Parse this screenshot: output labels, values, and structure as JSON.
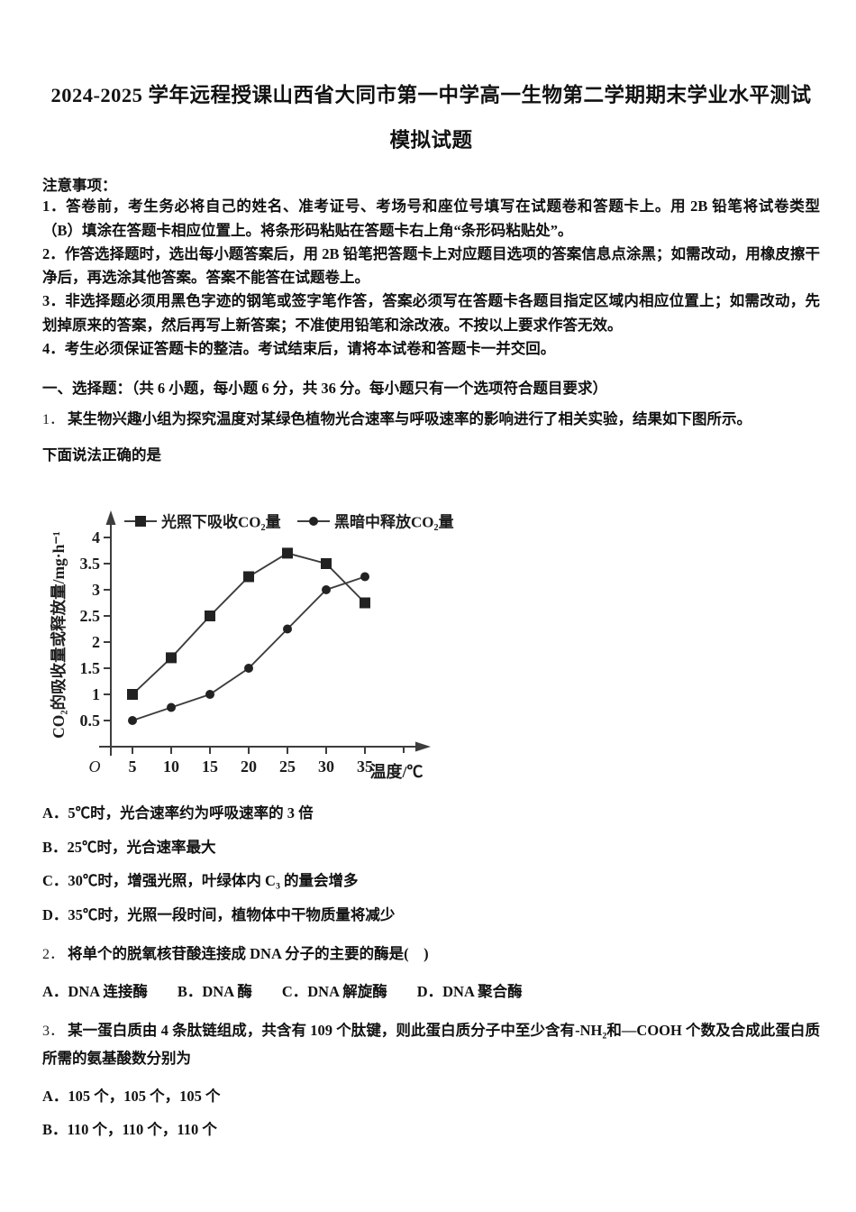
{
  "header": {
    "title_line1": "2024-2025 学年远程授课山西省大同市第一中学高一生物第二学期期末学业水平测试",
    "title_line2": "模拟试题"
  },
  "notice": {
    "heading": "注意事项：",
    "items": [
      "1．答卷前，考生务必将自己的姓名、准考证号、考场号和座位号填写在试题卷和答题卡上。用 2B 铅笔将试卷类型（B）填涂在答题卡相应位置上。将条形码粘贴在答题卡右上角“条形码粘贴处”。",
      "2．作答选择题时，选出每小题答案后，用 2B 铅笔把答题卡上对应题目选项的答案信息点涂黑；如需改动，用橡皮擦干净后，再选涂其他答案。答案不能答在试题卷上。",
      "3．非选择题必须用黑色字迹的钢笔或签字笔作答，答案必须写在答题卡各题目指定区域内相应位置上；如需改动，先划掉原来的答案，然后再写上新答案；不准使用铅笔和涂改液。不按以上要求作答无效。",
      "4．考生必须保证答题卡的整洁。考试结束后，请将本试卷和答题卡一并交回。"
    ]
  },
  "section": {
    "heading": "一、选择题：（共 6 小题，每小题 6 分，共 36 分。每小题只有一个选项符合题目要求）"
  },
  "questions": [
    {
      "number": "1．",
      "stem": "某生物兴趣小组为探究温度对某绿色植物光合速率与呼吸速率的影响进行了相关实验，结果如下图所示。",
      "stem_line2": "下面说法正确的是",
      "options": [
        "A．5℃时，光合速率约为呼吸速率的 3 倍",
        "B．25℃时，光合速率最大",
        "C．30℃时，增强光照，叶绿体内 C₃ 的量会增多",
        "D．35℃时，光照一段时间，植物体中干物质量将减少"
      ]
    },
    {
      "number": "2．",
      "stem": "将单个的脱氧核苷酸连接成 DNA 分子的主要的酶是(　)",
      "options_inline": "A．DNA 连接酶　　B．DNA 酶　　C．DNA 解旋酶　　D．DNA 聚合酶"
    },
    {
      "number": "3．",
      "stem": "某一蛋白质由 4 条肽链组成，共含有 109 个肽键，则此蛋白质分子中至少含有-NH₂和—COOH 个数及合成此蛋白质所需的氨基酸数分别为",
      "options": [
        "A．105 个，105 个，105 个",
        "B．110 个，110 个，110 个"
      ]
    }
  ],
  "chart_data": {
    "type": "line",
    "x": [
      5,
      10,
      15,
      20,
      25,
      30,
      35
    ],
    "series": [
      {
        "name": "光照下吸收CO₂量",
        "marker": "square",
        "values": [
          1,
          1.7,
          2.5,
          3.25,
          3.7,
          3.5,
          2.75
        ]
      },
      {
        "name": "黑暗中释放CO₂量",
        "marker": "circle",
        "values": [
          0.5,
          0.75,
          1,
          1.5,
          2.25,
          3,
          3.25
        ]
      }
    ],
    "xlabel": "温度/℃",
    "ylabel": "CO₂的吸收量或释放量/mg·h⁻¹",
    "origin_label": "O",
    "yticks": [
      0.5,
      1,
      1.5,
      2,
      2.5,
      3,
      3.5,
      4
    ],
    "xlim": [
      0,
      40
    ],
    "ylim": [
      0,
      4.5
    ],
    "grid": false,
    "legend_position": "top",
    "line_color": "#3d3d3d"
  }
}
